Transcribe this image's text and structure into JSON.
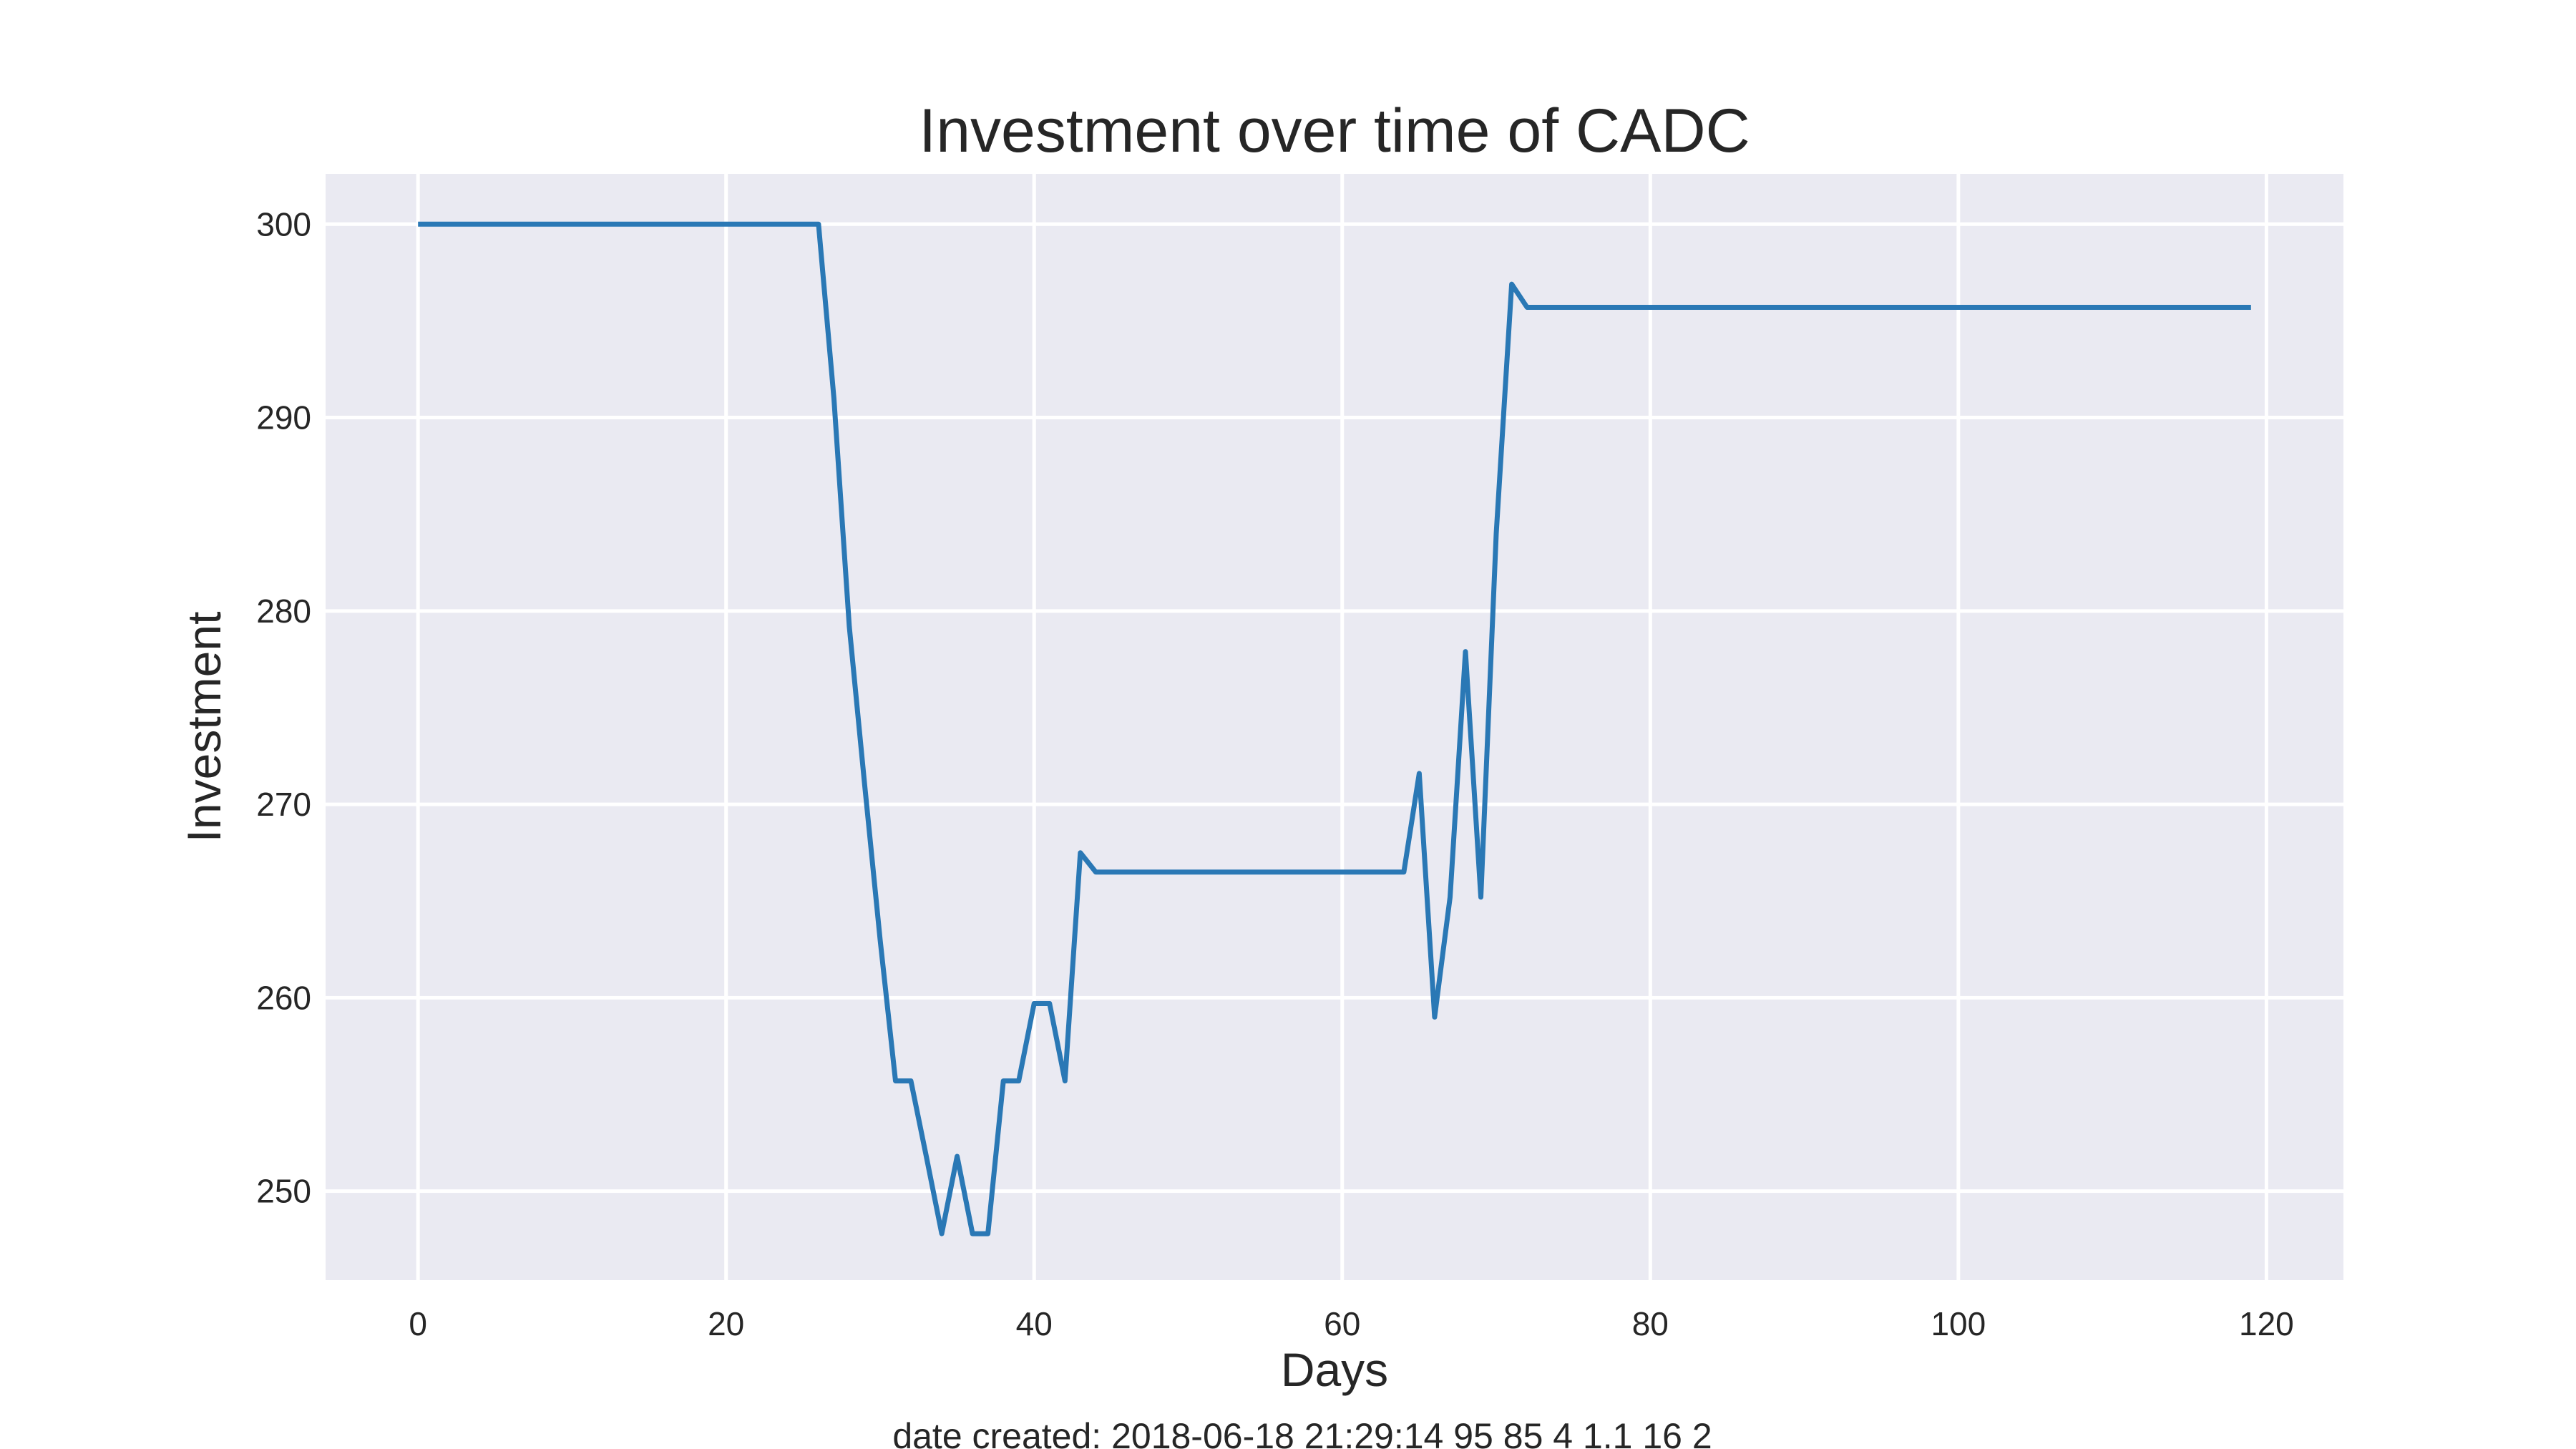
{
  "chart_data": {
    "type": "line",
    "title": "Investment over time of CADC",
    "xlabel": "Days",
    "ylabel": "Investment",
    "footnote": "date created: 2018-06-18 21:29:14 95 85 4 1.1 16 2",
    "xlim": [
      -6,
      125
    ],
    "ylim": [
      245.4,
      302.6
    ],
    "x_ticks": [
      0,
      20,
      40,
      60,
      80,
      100,
      120
    ],
    "y_ticks": [
      250,
      260,
      270,
      280,
      290,
      300
    ],
    "grid": true,
    "legend": "none",
    "colors": {
      "background": "#eaeaf2",
      "grid": "#ffffff",
      "line": "#2a78b5"
    },
    "series": [
      {
        "points": [
          [
            0,
            300
          ],
          [
            26,
            300
          ],
          [
            27,
            291
          ],
          [
            28,
            279.2
          ],
          [
            29,
            271
          ],
          [
            30,
            263
          ],
          [
            31,
            255.7
          ],
          [
            32,
            255.7
          ],
          [
            33,
            251.8
          ],
          [
            34,
            247.8
          ],
          [
            35,
            251.8
          ],
          [
            36,
            247.8
          ],
          [
            37,
            247.8
          ],
          [
            38,
            255.7
          ],
          [
            39,
            255.7
          ],
          [
            40,
            259.7
          ],
          [
            41,
            259.7
          ],
          [
            42,
            255.7
          ],
          [
            43,
            267.5
          ],
          [
            44,
            266.5
          ],
          [
            64,
            266.5
          ],
          [
            65,
            271.6
          ],
          [
            66,
            259
          ],
          [
            67,
            265.2
          ],
          [
            68,
            277.9
          ],
          [
            69,
            265.2
          ],
          [
            70,
            284
          ],
          [
            71,
            296.9
          ],
          [
            72,
            295.7
          ],
          [
            119,
            295.7
          ]
        ]
      }
    ]
  }
}
